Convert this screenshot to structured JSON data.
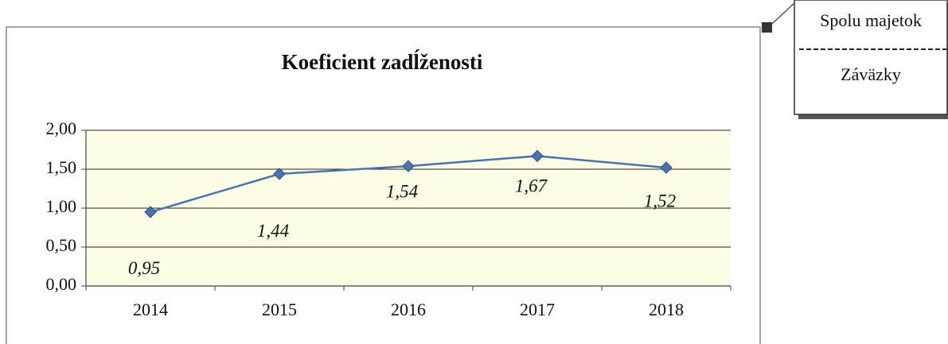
{
  "chart_data": {
    "type": "line",
    "title": "Koeficient zadĺženosti",
    "categories": [
      "2014",
      "2015",
      "2016",
      "2017",
      "2018"
    ],
    "values": [
      0.95,
      1.44,
      1.54,
      1.67,
      1.52
    ],
    "value_labels": [
      "0,95",
      "1,44",
      "1,54",
      "1,67",
      "1,52"
    ],
    "color": "#4a72b0",
    "ylim": [
      0,
      2
    ],
    "yticks": [
      {
        "value": 0,
        "label": "0,00"
      },
      {
        "value": 0.5,
        "label": "0,50"
      },
      {
        "value": 1,
        "label": "1,00"
      },
      {
        "value": 1.5,
        "label": "1,50"
      },
      {
        "value": 2,
        "label": "2,00"
      }
    ],
    "grid": true,
    "formula": {
      "numerator": "Spolu majetok",
      "denominator": "Záväzky"
    }
  }
}
